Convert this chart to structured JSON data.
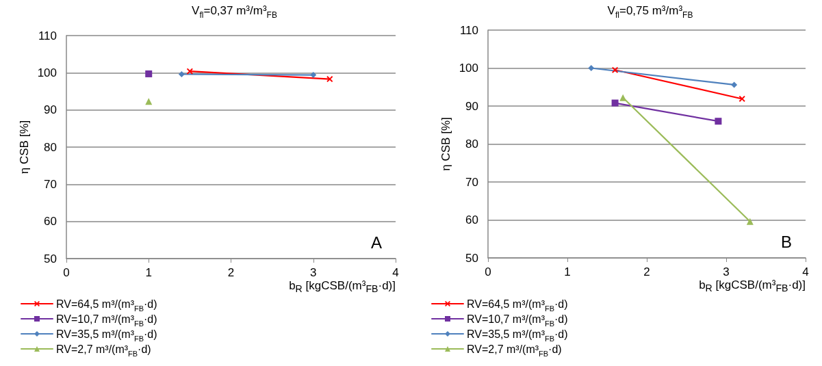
{
  "chart_data": [
    {
      "type": "line",
      "title": "V$_{fl}$=0,37 m³/m³$_{FB}$",
      "xlabel": "b$_{R}$ [kgCSB/(m³$_{FB}$·d)]",
      "ylabel": "η CSB [%]",
      "xlim": [
        0,
        4
      ],
      "xticks": [
        0,
        1,
        2,
        3,
        4
      ],
      "ylim": [
        50,
        110
      ],
      "yticks": [
        50,
        60,
        70,
        80,
        90,
        100,
        110
      ],
      "grid": "y",
      "legend": "bottom left",
      "line_style": "solid",
      "annotations": [
        "A"
      ],
      "series": [
        {
          "name": "RV=64,5 m³/(m³$_{FB}$·d)",
          "color": "#ff0000",
          "marker": "cross",
          "x": [
            1.5,
            3.2
          ],
          "values": [
            100.4,
            98.3
          ]
        },
        {
          "name": "RV=10,7 m³/(m³$_{FB}$·d)",
          "color": "#7030a0",
          "marker": "square",
          "x": [
            1.0
          ],
          "values": [
            99.7
          ]
        },
        {
          "name": "RV=35,5 m³/(m³$_{FB}$·d)",
          "color": "#4f81bd",
          "marker": "diamond",
          "x": [
            1.4,
            3.0
          ],
          "values": [
            99.6,
            99.4
          ]
        },
        {
          "name": "RV=2,7 m³/(m³$_{FB}$·d)",
          "color": "#9bbb59",
          "marker": "triangle",
          "x": [
            1.0
          ],
          "values": [
            92.3
          ]
        }
      ]
    },
    {
      "type": "line",
      "title": "V$_{fl}$=0,75 m³/m³$_{FB}$",
      "xlabel": "b$_{R}$ [kgCSB/(m³$_{FB}$·d)]",
      "ylabel": "η CSB [%]",
      "xlim": [
        0,
        4
      ],
      "xticks": [
        0,
        1,
        2,
        3,
        4
      ],
      "ylim": [
        50,
        110
      ],
      "yticks": [
        50,
        60,
        70,
        80,
        90,
        100,
        110
      ],
      "grid": "y",
      "legend": "bottom left",
      "line_style": "solid",
      "annotations": [
        "B"
      ],
      "series": [
        {
          "name": "RV=64,5 m³/(m³$_{FB}$·d)",
          "color": "#ff0000",
          "marker": "cross",
          "x": [
            1.6,
            3.2
          ],
          "values": [
            99.5,
            91.9
          ]
        },
        {
          "name": "RV=10,7 m³/(m³$_{FB}$·d)",
          "color": "#7030a0",
          "marker": "square",
          "x": [
            1.6,
            2.9
          ],
          "values": [
            90.8,
            86.0
          ]
        },
        {
          "name": "RV=35,5 m³/(m³$_{FB}$·d)",
          "color": "#4f81bd",
          "marker": "diamond",
          "x": [
            1.3,
            3.1
          ],
          "values": [
            100.0,
            95.6
          ]
        },
        {
          "name": "RV=2,7 m³/(m³$_{FB}$·d)",
          "color": "#9bbb59",
          "marker": "triangle",
          "x": [
            1.7,
            3.3
          ],
          "values": [
            92.2,
            59.6
          ]
        }
      ]
    }
  ]
}
